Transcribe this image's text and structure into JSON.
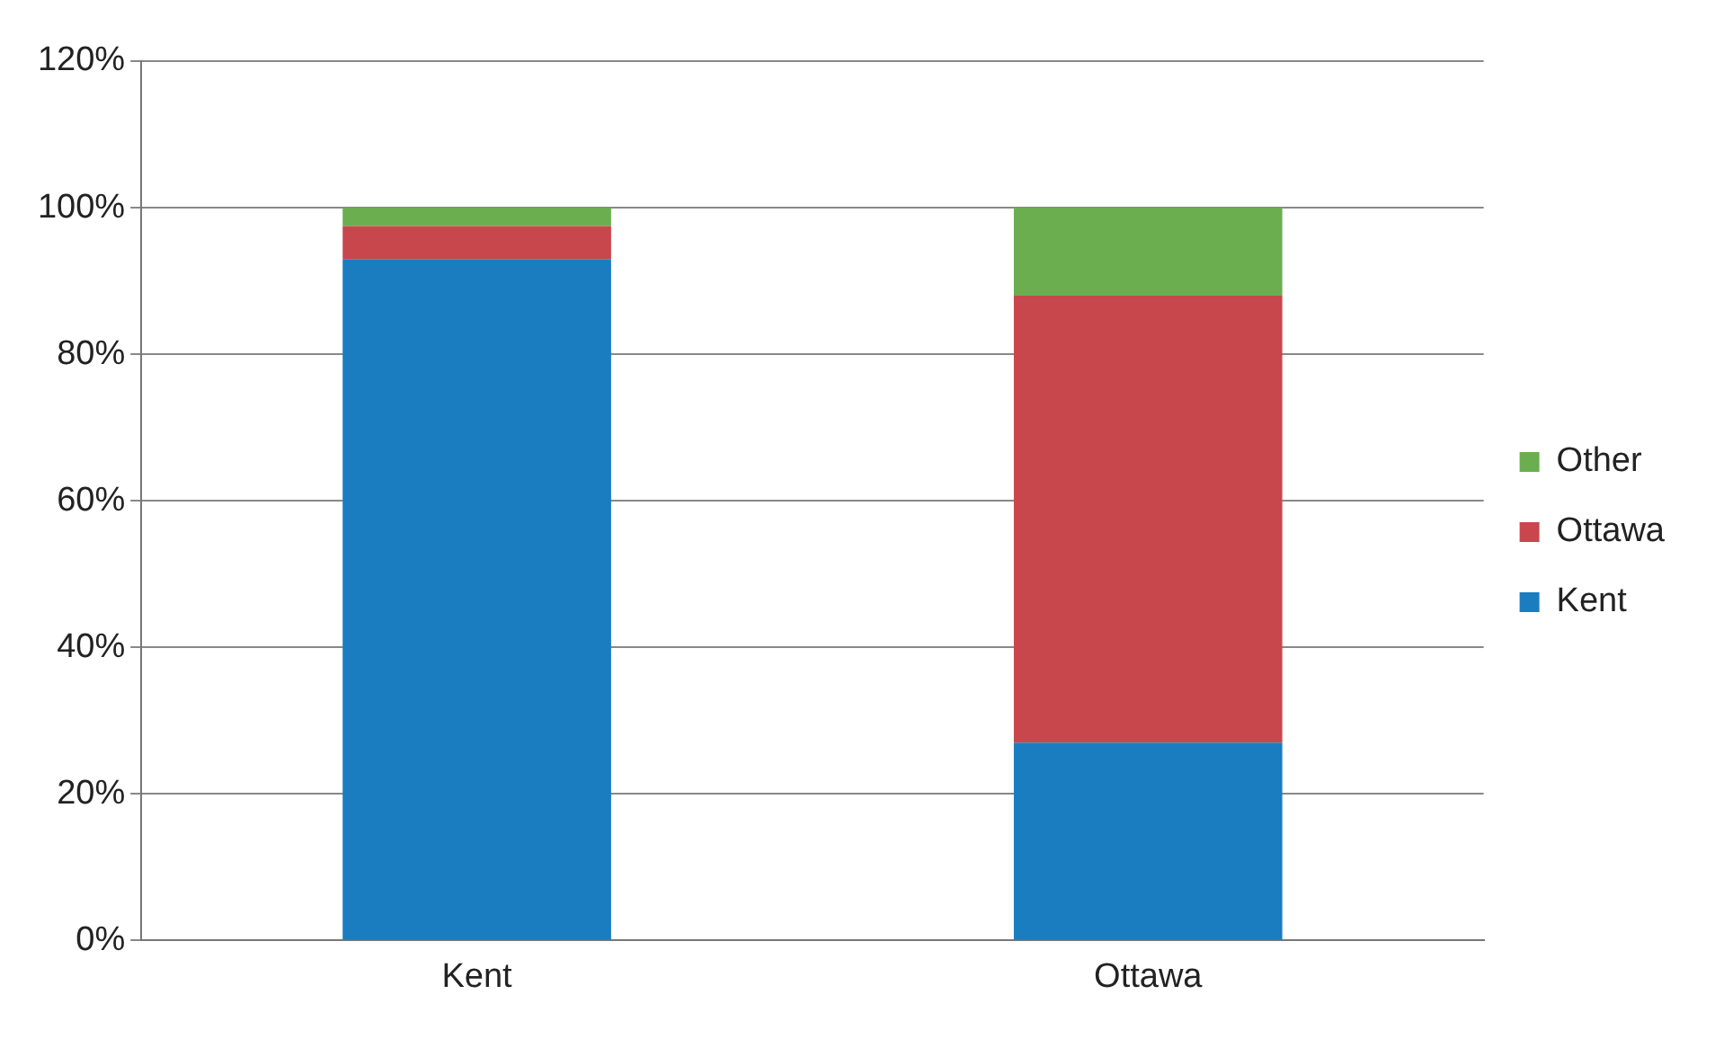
{
  "chart_data": {
    "type": "bar",
    "stacked": true,
    "categories": [
      "Kent",
      "Ottawa"
    ],
    "series": [
      {
        "name": "Kent",
        "color": "#1a7dc0",
        "values": [
          93,
          27
        ]
      },
      {
        "name": "Ottawa",
        "color": "#c8474c",
        "values": [
          4.5,
          61
        ]
      },
      {
        "name": "Other",
        "color": "#6aae50",
        "values": [
          2.5,
          12
        ]
      }
    ],
    "ylim": [
      0,
      120
    ],
    "yticks": [
      {
        "value": 0,
        "label": "0%"
      },
      {
        "value": 20,
        "label": "20%"
      },
      {
        "value": 40,
        "label": "40%"
      },
      {
        "value": 60,
        "label": "60%"
      },
      {
        "value": 80,
        "label": "80%"
      },
      {
        "value": 100,
        "label": "100%"
      },
      {
        "value": 120,
        "label": "120%"
      }
    ],
    "grid": "y",
    "legend": "right"
  }
}
